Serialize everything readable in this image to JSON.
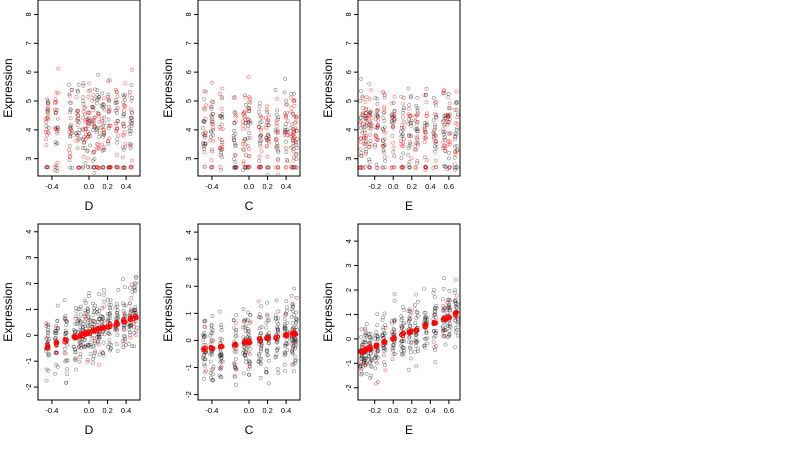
{
  "chart_data": [
    {
      "type": "scatter",
      "xlabel": "D",
      "ylabel": "Expression",
      "xlim": [
        -0.55,
        0.55
      ],
      "ylim": [
        2.4,
        8.5
      ],
      "xticks": [
        -0.4,
        0.0,
        0.2,
        0.4
      ],
      "xtick_labels": [
        "-0.4",
        "0.0",
        "0.2",
        "0.4"
      ],
      "yticks": [
        3,
        4,
        5,
        6,
        7,
        8
      ],
      "ytick_labels": [
        "3",
        "4",
        "5",
        "6",
        "7",
        "8"
      ],
      "x_clusters": [
        -0.45,
        -0.35,
        -0.2,
        -0.12,
        -0.05,
        0.0,
        0.05,
        0.1,
        0.15,
        0.22,
        0.3,
        0.38,
        0.45
      ],
      "y_center": 4.3,
      "y_spread": 1.0,
      "floor": 2.7,
      "points_per_cluster": 30,
      "colors": {
        "points": "#000000",
        "fit": "#ff0000"
      }
    },
    {
      "type": "scatter",
      "xlabel": "C",
      "ylabel": "Expression",
      "xlim": [
        -0.55,
        0.55
      ],
      "ylim": [
        2.4,
        8.5
      ],
      "xticks": [
        -0.4,
        0.0,
        0.2,
        0.4
      ],
      "xtick_labels": [
        "-0.4",
        "0.0",
        "0.2",
        "0.4"
      ],
      "yticks": [
        3,
        4,
        5,
        6,
        7,
        8
      ],
      "ytick_labels": [
        "3",
        "4",
        "5",
        "6",
        "7",
        "8"
      ],
      "x_clusters": [
        -0.48,
        -0.4,
        -0.3,
        -0.15,
        -0.05,
        0.0,
        0.12,
        0.2,
        0.3,
        0.4,
        0.47,
        0.5
      ],
      "y_center": 4.0,
      "y_spread": 0.9,
      "floor": 2.7,
      "points_per_cluster": 30,
      "colors": {
        "points": "#000000",
        "fit": "#ff0000"
      }
    },
    {
      "type": "scatter",
      "xlabel": "E",
      "ylabel": "Expression",
      "xlim": [
        -0.38,
        0.72
      ],
      "ylim": [
        2.4,
        8.5
      ],
      "xticks": [
        -0.2,
        0.0,
        0.2,
        0.4,
        0.6
      ],
      "xtick_labels": [
        "-0.2",
        "0.0",
        "0.2",
        "0.4",
        "0.6"
      ],
      "yticks": [
        3,
        4,
        5,
        6,
        7,
        8
      ],
      "ytick_labels": [
        "3",
        "4",
        "5",
        "6",
        "7",
        "8"
      ],
      "x_clusters": [
        -0.34,
        -0.3,
        -0.25,
        -0.18,
        -0.1,
        0.0,
        0.1,
        0.18,
        0.25,
        0.35,
        0.45,
        0.55,
        0.6,
        0.68
      ],
      "y_center": 4.1,
      "y_spread": 0.9,
      "floor": 2.7,
      "points_per_cluster": 30,
      "colors": {
        "points": "#000000",
        "fit": "#ff0000"
      }
    },
    {
      "type": "scatter",
      "xlabel": "D",
      "ylabel": "Expression",
      "xlim": [
        -0.55,
        0.55
      ],
      "ylim": [
        -2.5,
        4.3
      ],
      "xticks": [
        -0.4,
        0.0,
        0.2,
        0.4
      ],
      "xtick_labels": [
        "-0.4",
        "0.0",
        "0.2",
        "0.4"
      ],
      "yticks": [
        -2,
        -1,
        0,
        1,
        2,
        3,
        4
      ],
      "ytick_labels": [
        "-2",
        "-1",
        "0",
        "1",
        "2",
        "3",
        "4"
      ],
      "x_clusters": [
        -0.45,
        -0.35,
        -0.25,
        -0.15,
        -0.1,
        -0.05,
        0.0,
        0.05,
        0.1,
        0.15,
        0.22,
        0.3,
        0.38,
        0.45,
        0.5
      ],
      "fit": {
        "intercept": 0.1,
        "slope": 1.2
      },
      "y_spread": 0.9,
      "points_per_cluster": 28,
      "colors": {
        "points": "#000000",
        "fit": "#ff0000"
      }
    },
    {
      "type": "scatter",
      "xlabel": "C",
      "ylabel": "Expression",
      "xlim": [
        -0.55,
        0.55
      ],
      "ylim": [
        -2.2,
        4.3
      ],
      "xticks": [
        -0.4,
        0.0,
        0.2,
        0.4
      ],
      "xtick_labels": [
        "-0.4",
        "0.0",
        "0.2",
        "0.4"
      ],
      "yticks": [
        -2,
        -1,
        0,
        1,
        2,
        3,
        4
      ],
      "ytick_labels": [
        "-2",
        "-1",
        "0",
        "1",
        "2",
        "3",
        "4"
      ],
      "x_clusters": [
        -0.48,
        -0.4,
        -0.3,
        -0.15,
        -0.05,
        0.0,
        0.12,
        0.2,
        0.3,
        0.4,
        0.47,
        0.5
      ],
      "fit": {
        "intercept": -0.05,
        "slope": 0.6
      },
      "y_spread": 0.9,
      "points_per_cluster": 30,
      "colors": {
        "points": "#000000",
        "fit": "#ff0000"
      }
    },
    {
      "type": "scatter",
      "xlabel": "E",
      "ylabel": "Expression",
      "xlim": [
        -0.38,
        0.72
      ],
      "ylim": [
        -2.5,
        4.7
      ],
      "xticks": [
        -0.2,
        0.0,
        0.2,
        0.4,
        0.6
      ],
      "xtick_labels": [
        "-0.2",
        "0.0",
        "0.2",
        "0.4",
        "0.6"
      ],
      "yticks": [
        -2,
        -1,
        0,
        1,
        2,
        3,
        4
      ],
      "ytick_labels": [
        "-2",
        "-1",
        "0",
        "1",
        "2",
        "3",
        "4"
      ],
      "x_clusters": [
        -0.34,
        -0.3,
        -0.25,
        -0.18,
        -0.1,
        0.0,
        0.1,
        0.18,
        0.25,
        0.35,
        0.45,
        0.55,
        0.6,
        0.68
      ],
      "fit": {
        "intercept": 0.0,
        "slope": 1.5
      },
      "y_spread": 0.85,
      "points_per_cluster": 30,
      "colors": {
        "points": "#000000",
        "fit": "#ff0000"
      }
    }
  ]
}
